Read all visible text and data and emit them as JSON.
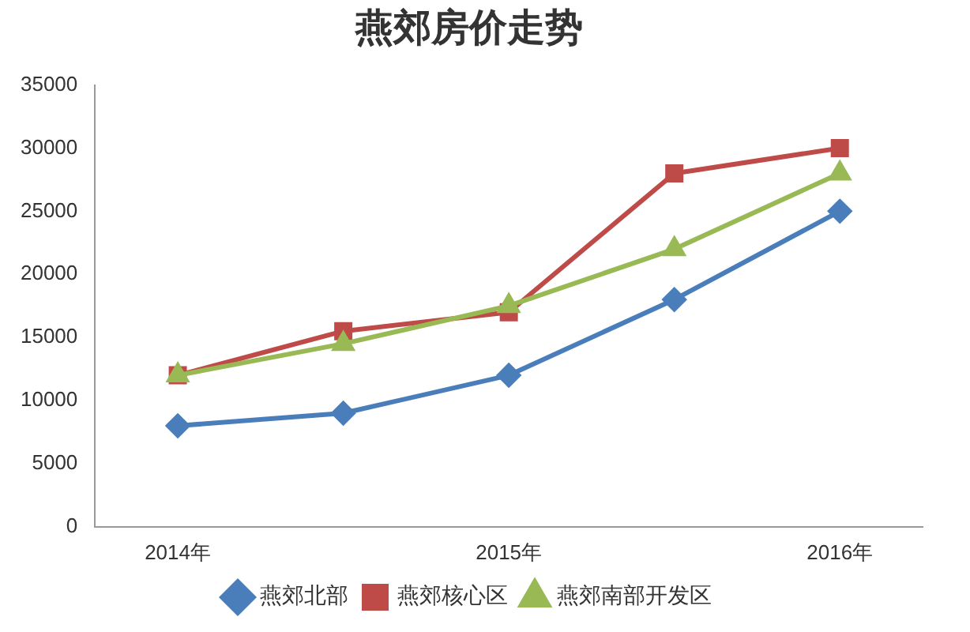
{
  "chart_data": {
    "type": "line",
    "title": "燕郊房价走势",
    "categories": [
      "2014年",
      null,
      "2015年",
      null,
      "2016年"
    ],
    "series": [
      {
        "name": "燕郊北部",
        "color": "#4a7ebb",
        "marker": "diamond",
        "values": [
          8000,
          9000,
          12000,
          18000,
          25000
        ]
      },
      {
        "name": "燕郊核心区",
        "color": "#be4b48",
        "marker": "square",
        "values": [
          12000,
          15500,
          17000,
          28000,
          30000
        ]
      },
      {
        "name": "燕郊南部开发区",
        "color": "#98b954",
        "marker": "triangle",
        "values": [
          12000,
          14500,
          17500,
          22000,
          28000
        ]
      }
    ],
    "ylim": [
      0,
      35000
    ],
    "yticks": [
      0,
      5000,
      10000,
      15000,
      20000,
      25000,
      30000,
      35000
    ],
    "grid": false,
    "legend": "bottom"
  }
}
